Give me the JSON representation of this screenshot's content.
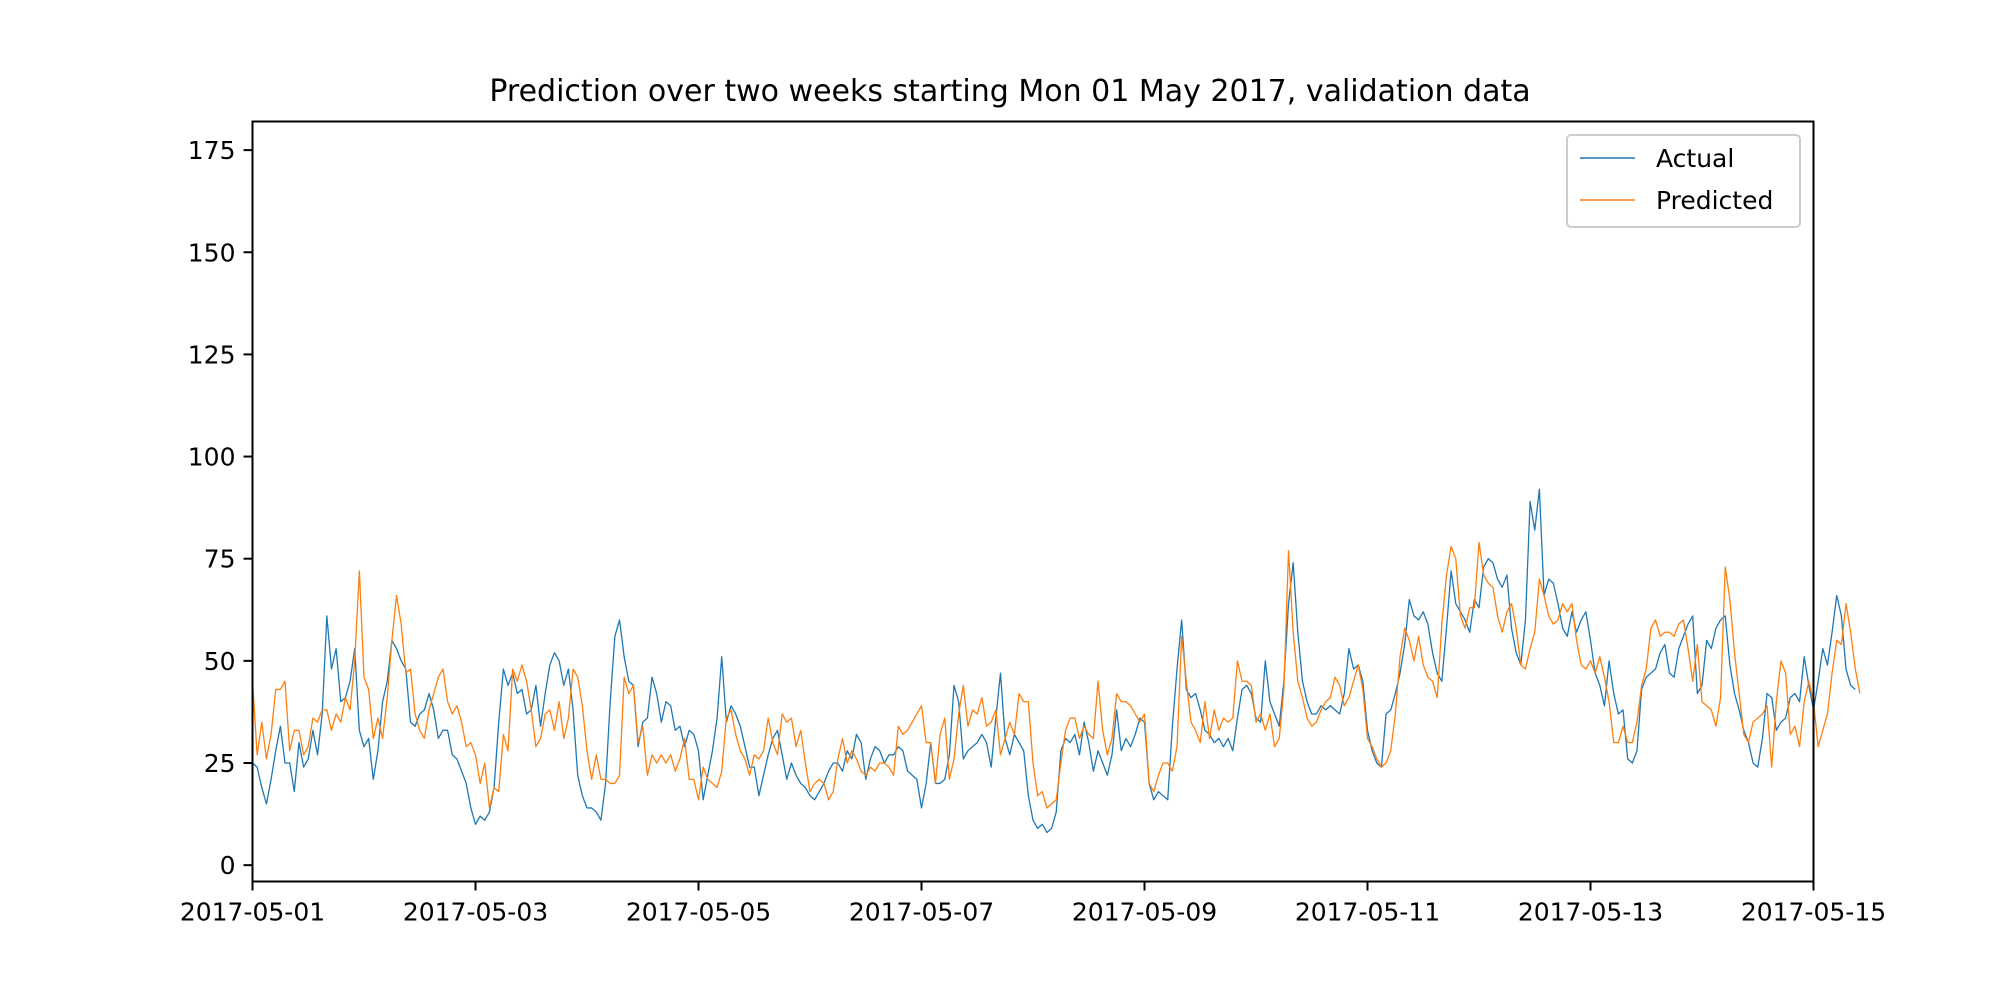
{
  "chart_data": {
    "type": "line",
    "title": "Prediction over two weeks starting Mon 01 May 2017, validation data",
    "xlabel": "",
    "ylabel": "",
    "xlim": [
      "2017-05-01",
      "2017-05-15"
    ],
    "ylim": [
      -4,
      182
    ],
    "x_ticks": [
      "2017-05-01",
      "2017-05-03",
      "2017-05-05",
      "2017-05-07",
      "2017-05-09",
      "2017-05-11",
      "2017-05-13",
      "2017-05-15"
    ],
    "y_ticks": [
      0,
      25,
      50,
      75,
      100,
      125,
      150,
      175
    ],
    "grid": false,
    "legend": {
      "placement": "top-right",
      "entries": [
        "Actual",
        "Predicted"
      ]
    },
    "sampling": "hourly",
    "series": [
      {
        "name": "Actual",
        "color": "#1f77b4",
        "start": "2017-05-01 00:00",
        "values": [
          25,
          24,
          19,
          15,
          21,
          28,
          34,
          25,
          25,
          18,
          30,
          24,
          26,
          33,
          27,
          37,
          61,
          48,
          53,
          40,
          41,
          45,
          53,
          33,
          29,
          31,
          21,
          28,
          40,
          45,
          55,
          53,
          50,
          48,
          35,
          34,
          37,
          38,
          42,
          38,
          31,
          33,
          33,
          27,
          26,
          23,
          20,
          14,
          10,
          12,
          11,
          13,
          19,
          35,
          48,
          44,
          47,
          42,
          43,
          37,
          38,
          44,
          34,
          42,
          49,
          52,
          50,
          44,
          48,
          38,
          22,
          17,
          14,
          14,
          13,
          11,
          20,
          40,
          56,
          60,
          51,
          45,
          44,
          29,
          35,
          36,
          46,
          42,
          35,
          40,
          39,
          33,
          34,
          29,
          33,
          32,
          28,
          16,
          22,
          28,
          36,
          51,
          35,
          39,
          37,
          34,
          29,
          24,
          24,
          17,
          22,
          27,
          31,
          33,
          27,
          21,
          25,
          22,
          20,
          19,
          17,
          16,
          18,
          20,
          23,
          25,
          25,
          23,
          28,
          26,
          32,
          30,
          21,
          26,
          29,
          28,
          25,
          27,
          27,
          29,
          28,
          23,
          22,
          21,
          14,
          20,
          30,
          20,
          20,
          21,
          27,
          44,
          40,
          26,
          28,
          29,
          30,
          32,
          30,
          24,
          36,
          47,
          31,
          27,
          32,
          30,
          28,
          17,
          11,
          9,
          10,
          8,
          9,
          13,
          28,
          31,
          30,
          32,
          27,
          35,
          30,
          23,
          28,
          25,
          22,
          27,
          38,
          28,
          31,
          29,
          32,
          36,
          35,
          20,
          16,
          18,
          17,
          16,
          34,
          48,
          60,
          43,
          41,
          42,
          38,
          33,
          32,
          30,
          31,
          29,
          31,
          28,
          36,
          43,
          44,
          42,
          36,
          35,
          50,
          40,
          37,
          34,
          45,
          64,
          74,
          57,
          45,
          40,
          37,
          37,
          39,
          38,
          39,
          38,
          37,
          42,
          53,
          48,
          49,
          45,
          33,
          28,
          25,
          24,
          37,
          38,
          42,
          47,
          54,
          65,
          61,
          60,
          62,
          59,
          52,
          47,
          45,
          58,
          72,
          64,
          62,
          60,
          57,
          65,
          63,
          73,
          75,
          74,
          70,
          68,
          71,
          58,
          52,
          49,
          60,
          89,
          82,
          92,
          66,
          70,
          69,
          64,
          58,
          56,
          62,
          57,
          60,
          62,
          55,
          47,
          44,
          39,
          50,
          42,
          37,
          38,
          26,
          25,
          28,
          43,
          46,
          47,
          48,
          52,
          54,
          47,
          46,
          53,
          56,
          59,
          61,
          42,
          44,
          55,
          53,
          58,
          60,
          61,
          49,
          42,
          38,
          33,
          30,
          25,
          24,
          31,
          42,
          41,
          33,
          35,
          36,
          41,
          42,
          40,
          51,
          44,
          38,
          45,
          53,
          49,
          57,
          66,
          61,
          48,
          44,
          43
        ]
      },
      {
        "name": "Predicted",
        "color": "#ff7f0e",
        "start": "2017-05-01 00:00",
        "values": [
          45,
          27,
          35,
          26,
          32,
          43,
          43,
          45,
          28,
          33,
          33,
          27,
          29,
          36,
          35,
          38,
          38,
          33,
          37,
          35,
          41,
          38,
          50,
          72,
          46,
          43,
          31,
          36,
          31,
          41,
          55,
          66,
          59,
          47,
          48,
          37,
          33,
          31,
          38,
          42,
          46,
          48,
          40,
          37,
          39,
          35,
          29,
          30,
          27,
          20,
          25,
          14,
          19,
          18,
          32,
          28,
          48,
          45,
          49,
          45,
          38,
          29,
          31,
          37,
          38,
          33,
          40,
          31,
          36,
          48,
          46,
          39,
          28,
          21,
          27,
          21,
          21,
          20,
          20,
          22,
          46,
          42,
          44,
          30,
          34,
          22,
          27,
          25,
          27,
          25,
          27,
          23,
          26,
          31,
          21,
          21,
          16,
          24,
          21,
          20,
          19,
          23,
          36,
          38,
          32,
          28,
          26,
          22,
          27,
          26,
          28,
          36,
          30,
          27,
          37,
          35,
          36,
          29,
          33,
          25,
          18,
          20,
          21,
          20,
          16,
          18,
          26,
          31,
          25,
          28,
          26,
          23,
          22,
          24,
          23,
          25,
          25,
          24,
          22,
          34,
          32,
          33,
          35,
          37,
          39,
          30,
          30,
          20,
          32,
          36,
          21,
          26,
          37,
          44,
          34,
          38,
          37,
          41,
          34,
          35,
          38,
          27,
          31,
          35,
          32,
          42,
          40,
          40,
          25,
          17,
          18,
          14,
          15,
          16,
          25,
          33,
          36,
          36,
          31,
          34,
          32,
          31,
          45,
          33,
          27,
          31,
          42,
          40,
          40,
          39,
          37,
          35,
          37,
          20,
          18,
          22,
          25,
          25,
          23,
          29,
          56,
          45,
          35,
          33,
          30,
          40,
          31,
          38,
          33,
          36,
          35,
          36,
          50,
          45,
          45,
          44,
          35,
          37,
          33,
          37,
          29,
          31,
          43,
          77,
          57,
          45,
          41,
          36,
          34,
          35,
          38,
          40,
          41,
          46,
          44,
          39,
          41,
          45,
          49,
          43,
          31,
          29,
          26,
          24,
          25,
          28,
          37,
          51,
          58,
          55,
          50,
          56,
          49,
          46,
          45,
          41,
          59,
          71,
          78,
          75,
          61,
          58,
          63,
          63,
          79,
          71,
          69,
          68,
          61,
          57,
          62,
          64,
          58,
          49,
          48,
          53,
          57,
          70,
          66,
          61,
          59,
          60,
          64,
          62,
          64,
          55,
          49,
          48,
          50,
          47,
          51,
          46,
          40,
          30,
          30,
          34,
          30,
          30,
          35,
          44,
          48,
          58,
          60,
          56,
          57,
          57,
          56,
          59,
          60,
          53,
          45,
          54,
          40,
          39,
          38,
          34,
          41,
          73,
          65,
          52,
          42,
          32,
          30,
          35,
          36,
          37,
          39,
          24,
          40,
          50,
          47,
          32,
          34,
          29,
          40,
          45,
          40,
          29,
          33,
          37,
          47,
          55,
          54,
          64,
          57,
          48,
          42
        ]
      }
    ]
  }
}
